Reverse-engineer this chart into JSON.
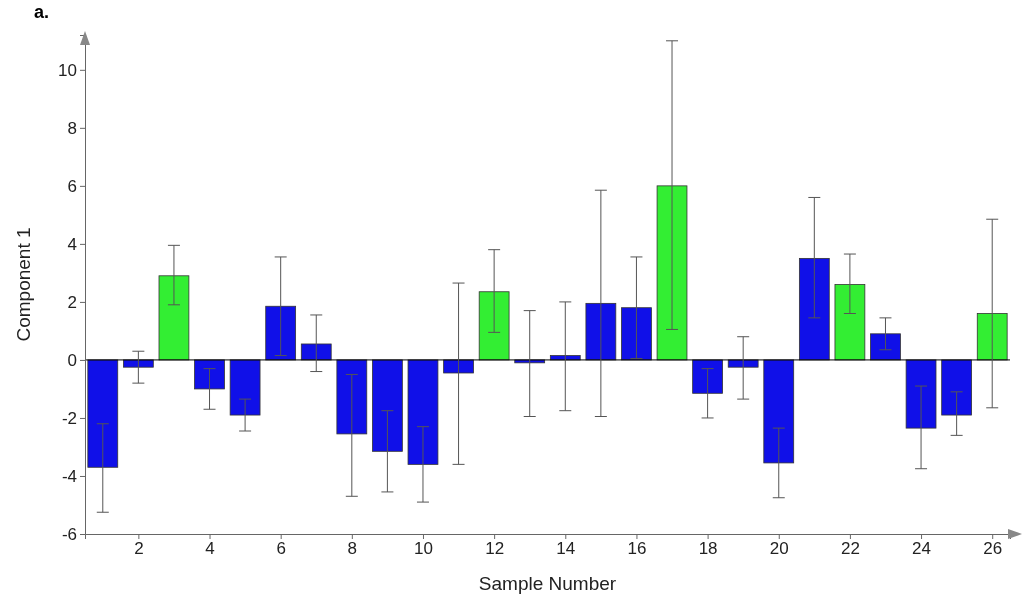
{
  "chart_data": {
    "type": "bar",
    "xlabel": "Sample Number",
    "ylabel": "Component 1",
    "annotations": [
      "a."
    ],
    "x": [
      1,
      2,
      3,
      4,
      5,
      6,
      7,
      8,
      9,
      10,
      11,
      12,
      13,
      14,
      15,
      16,
      17,
      18,
      19,
      20,
      21,
      22,
      23,
      24,
      25,
      26
    ],
    "values": [
      -3.7,
      -0.25,
      2.9,
      -1.0,
      -1.9,
      1.85,
      0.55,
      -2.55,
      -3.15,
      -3.6,
      -0.45,
      2.35,
      -0.1,
      0.15,
      1.95,
      1.8,
      6.0,
      -1.15,
      -0.25,
      -3.55,
      3.5,
      2.6,
      0.9,
      -2.35,
      -1.9,
      1.6
    ],
    "colors": [
      "#1010e8",
      "#1010e8",
      "#33ee33",
      "#1010e8",
      "#1010e8",
      "#1010e8",
      "#1010e8",
      "#1010e8",
      "#1010e8",
      "#1010e8",
      "#1010e8",
      "#33ee33",
      "#1010e8",
      "#1010e8",
      "#1010e8",
      "#1010e8",
      "#33ee33",
      "#1010e8",
      "#1010e8",
      "#1010e8",
      "#1010e8",
      "#33ee33",
      "#1010e8",
      "#1010e8",
      "#1010e8",
      "#33ee33"
    ],
    "errors": [
      [
        -5.25,
        -2.2
      ],
      [
        -0.8,
        0.3
      ],
      [
        1.9,
        3.95
      ],
      [
        -1.7,
        -0.3
      ],
      [
        -2.45,
        -1.35
      ],
      [
        0.15,
        3.55
      ],
      [
        -0.4,
        1.55
      ],
      [
        -4.7,
        -0.5
      ],
      [
        -4.55,
        -1.75
      ],
      [
        -4.9,
        -2.3
      ],
      [
        -3.6,
        2.65
      ],
      [
        0.95,
        3.8
      ],
      [
        -1.95,
        1.7
      ],
      [
        -1.75,
        2.0
      ],
      [
        -1.95,
        5.85
      ],
      [
        0.05,
        3.55
      ],
      [
        1.05,
        11.0
      ],
      [
        -2.0,
        -0.3
      ],
      [
        -1.35,
        0.8
      ],
      [
        -4.75,
        -2.35
      ],
      [
        1.45,
        5.6
      ],
      [
        1.6,
        3.65
      ],
      [
        0.35,
        1.45
      ],
      [
        -3.75,
        -0.9
      ],
      [
        -2.6,
        -1.1
      ],
      [
        -1.65,
        4.85
      ]
    ],
    "xlim": [
      0.5,
      26.5
    ],
    "xticks": [
      2,
      4,
      6,
      8,
      10,
      12,
      14,
      16,
      18,
      20,
      22,
      24,
      26
    ],
    "ylim": [
      -6,
      11.2
    ],
    "yticks": [
      -6,
      -4,
      -2,
      0,
      2,
      4,
      6,
      8,
      10
    ],
    "ref_lines": [
      {
        "axis": "y",
        "value": 0,
        "color": "#000000"
      }
    ]
  }
}
